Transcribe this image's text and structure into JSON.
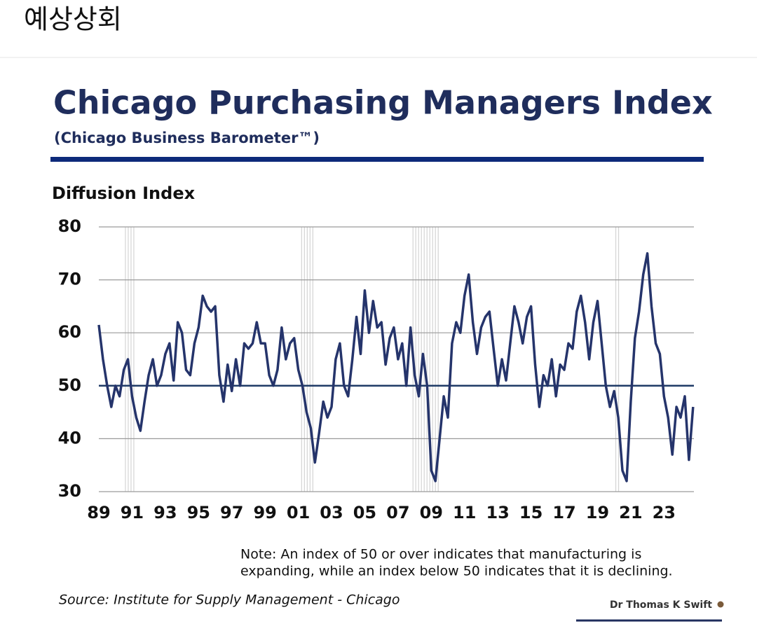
{
  "header": {
    "title": "예상상회"
  },
  "chart_data": {
    "type": "line",
    "title": "Chicago Purchasing Managers Index",
    "subtitle": "(Chicago Business Barometer™)",
    "ylabel": "Diffusion Index",
    "note": [
      "Note: An index of 50 or over indicates that manufacturing is",
      "expanding, while an index below 50 indicates that it is declining."
    ],
    "source": "Source: Institute for Supply Management - Chicago",
    "credit": "Dr Thomas K Swift",
    "color": "#25346b",
    "grid": true,
    "reference_line": 50,
    "recessions": [
      [
        1990.6,
        1991.2
      ],
      [
        2001.2,
        2001.9
      ],
      [
        2007.9,
        2009.5
      ],
      [
        2020.1,
        2020.3
      ]
    ],
    "xlim": [
      1989,
      2024.8
    ],
    "ylim": [
      30,
      80
    ],
    "yticks": [
      30,
      40,
      50,
      60,
      70,
      80
    ],
    "xticks": [
      {
        "value": 1989,
        "label": "89"
      },
      {
        "value": 1991,
        "label": "91"
      },
      {
        "value": 1993,
        "label": "93"
      },
      {
        "value": 1995,
        "label": "95"
      },
      {
        "value": 1997,
        "label": "97"
      },
      {
        "value": 1999,
        "label": "99"
      },
      {
        "value": 2001,
        "label": "01"
      },
      {
        "value": 2003,
        "label": "03"
      },
      {
        "value": 2005,
        "label": "05"
      },
      {
        "value": 2007,
        "label": "07"
      },
      {
        "value": 2009,
        "label": "09"
      },
      {
        "value": 2011,
        "label": "11"
      },
      {
        "value": 2013,
        "label": "13"
      },
      {
        "value": 2015,
        "label": "15"
      },
      {
        "value": 2017,
        "label": "17"
      },
      {
        "value": 2019,
        "label": "19"
      },
      {
        "value": 2021,
        "label": "21"
      },
      {
        "value": 2023,
        "label": "23"
      }
    ],
    "x": [
      1989,
      1989.25,
      1989.5,
      1989.75,
      1990,
      1990.25,
      1990.5,
      1990.75,
      1991,
      1991.25,
      1991.5,
      1991.75,
      1992,
      1992.25,
      1992.5,
      1992.75,
      1993,
      1993.25,
      1993.5,
      1993.75,
      1994,
      1994.25,
      1994.5,
      1994.75,
      1995,
      1995.25,
      1995.5,
      1995.75,
      1996,
      1996.25,
      1996.5,
      1996.75,
      1997,
      1997.25,
      1997.5,
      1997.75,
      1998,
      1998.25,
      1998.5,
      1998.75,
      1999,
      1999.25,
      1999.5,
      1999.75,
      2000,
      2000.25,
      2000.5,
      2000.75,
      2001,
      2001.25,
      2001.5,
      2001.75,
      2002,
      2002.25,
      2002.5,
      2002.75,
      2003,
      2003.25,
      2003.5,
      2003.75,
      2004,
      2004.25,
      2004.5,
      2004.75,
      2005,
      2005.25,
      2005.5,
      2005.75,
      2006,
      2006.25,
      2006.5,
      2006.75,
      2007,
      2007.25,
      2007.5,
      2007.75,
      2008,
      2008.25,
      2008.5,
      2008.75,
      2009,
      2009.25,
      2009.5,
      2009.75,
      2010,
      2010.25,
      2010.5,
      2010.75,
      2011,
      2011.25,
      2011.5,
      2011.75,
      2012,
      2012.25,
      2012.5,
      2012.75,
      2013,
      2013.25,
      2013.5,
      2013.75,
      2014,
      2014.25,
      2014.5,
      2014.75,
      2015,
      2015.25,
      2015.5,
      2015.75,
      2016,
      2016.25,
      2016.5,
      2016.75,
      2017,
      2017.25,
      2017.5,
      2017.75,
      2018,
      2018.25,
      2018.5,
      2018.75,
      2019,
      2019.25,
      2019.5,
      2019.75,
      2020,
      2020.25,
      2020.5,
      2020.75,
      2021,
      2021.25,
      2021.5,
      2021.75,
      2022,
      2022.25,
      2022.5,
      2022.75,
      2023,
      2023.25,
      2023.5,
      2023.75,
      2024,
      2024.25,
      2024.5,
      2024.75
    ],
    "values": [
      61.5,
      55,
      50,
      46,
      50,
      48,
      53,
      55,
      48,
      44,
      41.5,
      47,
      52,
      55,
      50,
      52,
      56,
      58,
      51,
      62,
      60,
      53,
      52,
      58,
      61,
      67,
      65,
      64,
      65,
      52,
      47,
      54,
      49,
      55,
      50,
      58,
      57,
      58,
      62,
      58,
      58,
      52,
      50,
      53,
      61,
      55,
      58,
      59,
      53,
      50,
      45,
      42,
      35.5,
      41,
      47,
      44,
      46,
      55,
      58,
      50,
      48,
      55,
      63,
      56,
      68,
      60,
      66,
      61,
      62,
      54,
      59,
      61,
      55,
      58,
      50,
      61,
      52,
      48,
      56,
      50,
      34,
      32,
      40,
      48,
      44,
      58,
      62,
      60,
      67,
      71,
      62,
      56,
      61,
      63,
      64,
      57,
      50,
      55,
      51,
      58,
      65,
      62,
      58,
      63,
      65,
      54,
      46,
      52,
      50,
      55,
      48,
      54,
      53,
      58,
      57,
      64,
      67,
      62,
      55,
      62,
      66,
      58,
      50,
      46,
      49,
      44,
      34,
      32,
      47,
      59,
      64,
      71,
      75,
      65,
      58,
      56,
      48,
      44,
      37,
      46,
      44,
      48,
      36,
      46
    ]
  }
}
